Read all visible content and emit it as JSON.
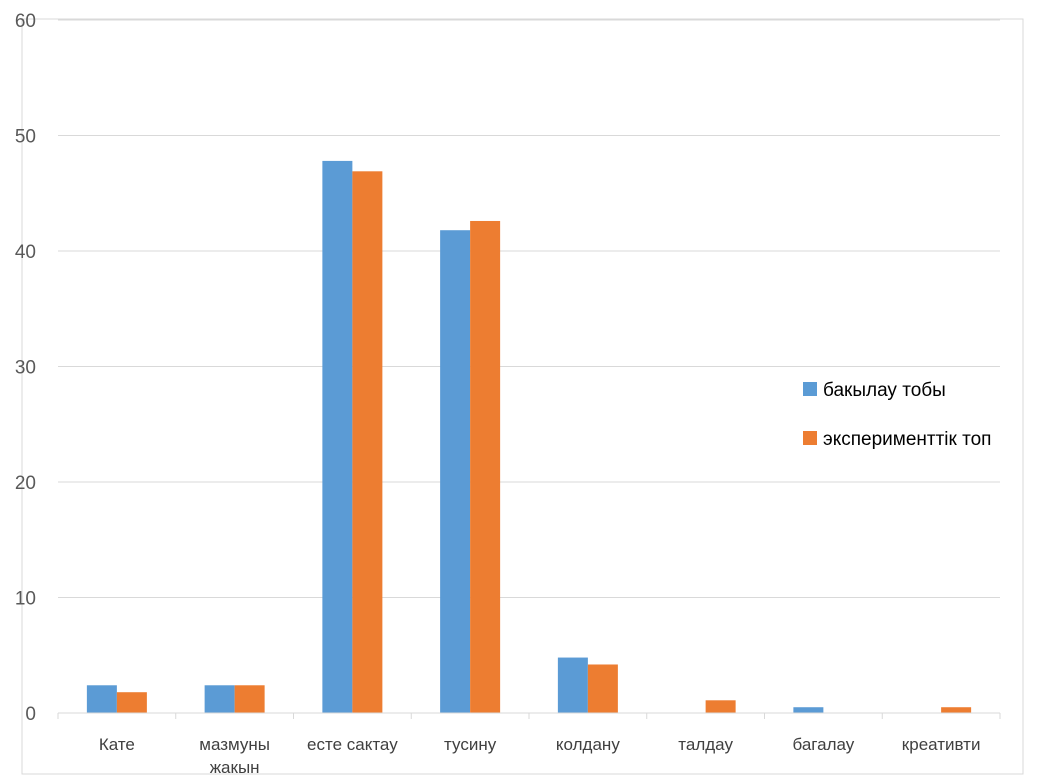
{
  "chart_data": {
    "type": "bar",
    "title": "",
    "categories": [
      [
        "Кате"
      ],
      [
        "мазмуны",
        "жакын"
      ],
      [
        "есте сактау"
      ],
      [
        "тусину"
      ],
      [
        "колдану"
      ],
      [
        "талдау"
      ],
      [
        "багалау"
      ],
      [
        "креативти"
      ]
    ],
    "series": [
      {
        "name": "бакылау тобы",
        "color": "#5b9bd5",
        "values": [
          2.4,
          2.4,
          47.8,
          41.8,
          4.8,
          0,
          0.5,
          0
        ]
      },
      {
        "name": "эксперименттiк топ",
        "color": "#ed7d31",
        "values": [
          1.8,
          2.4,
          46.9,
          42.6,
          4.2,
          1.1,
          0,
          0.5
        ]
      }
    ],
    "ylim": [
      0,
      60
    ],
    "yticks": [
      0,
      10,
      20,
      30,
      40,
      50,
      60
    ],
    "grid": true,
    "legend": "right"
  }
}
